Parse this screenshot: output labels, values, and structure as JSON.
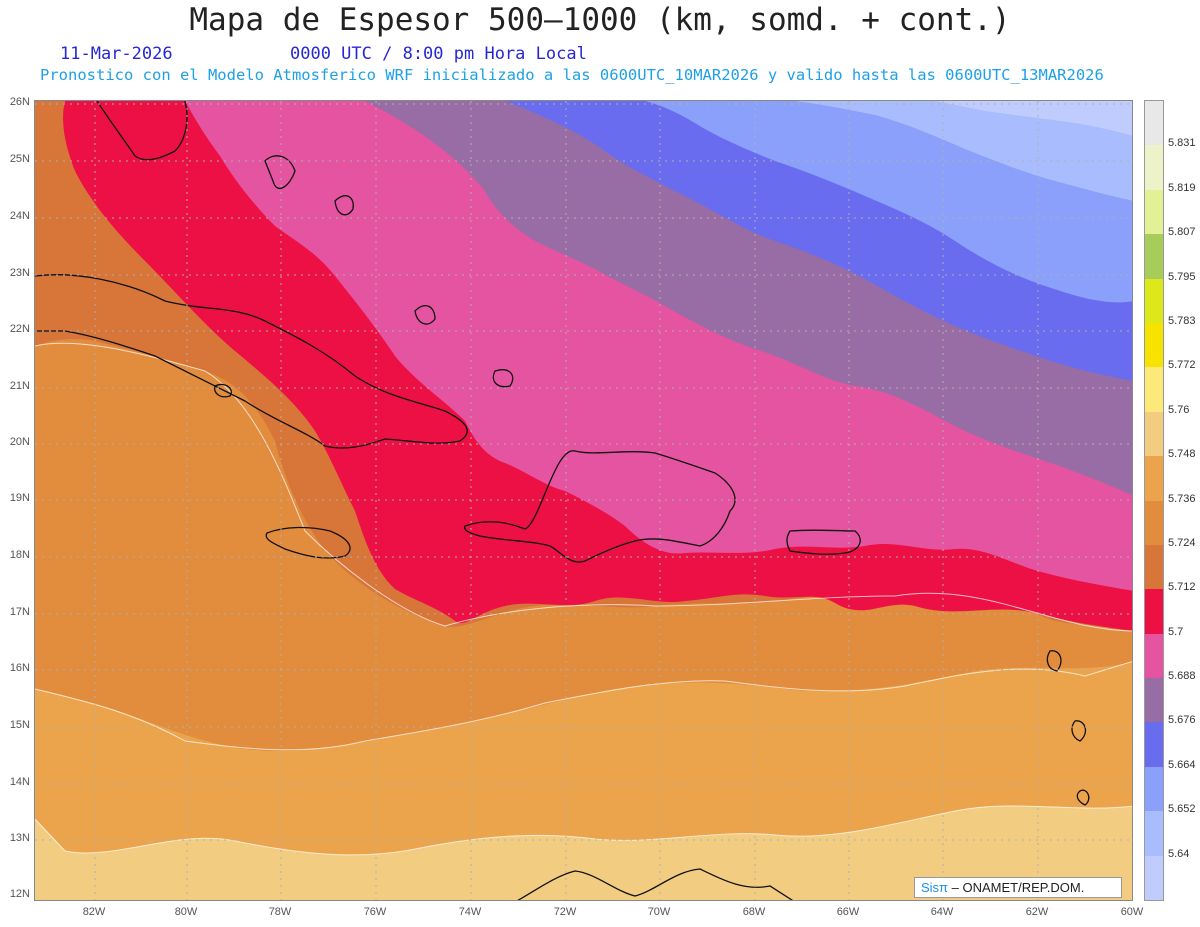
{
  "header": {
    "title": "Mapa de Espesor 500–1000 (km, somd. + cont.)",
    "date": "11-Mar-2026",
    "time": "0000 UTC / 8:00 pm Hora Local",
    "subtitle": "Pronostico con el Modelo Atmosferico WRF inicializado a las 0600UTC_10MAR2026 y valido hasta las  0600UTC_13MAR2026"
  },
  "map": {
    "lat_labels": [
      "26N",
      "25N",
      "24N",
      "23N",
      "22N",
      "21N",
      "20N",
      "19N",
      "18N",
      "17N",
      "16N",
      "15N",
      "14N",
      "13N",
      "12N"
    ],
    "lon_labels": [
      "82W",
      "80W",
      "78W",
      "76W",
      "74W",
      "72W",
      "70W",
      "68W",
      "66W",
      "64W",
      "62W",
      "60W"
    ],
    "lat_range": [
      12,
      26
    ],
    "lon_range": [
      -83.2,
      -60
    ]
  },
  "colorbar": {
    "labels": [
      "5.831",
      "5.819",
      "5.807",
      "5.795",
      "5.783",
      "5.772",
      "5.76",
      "5.748",
      "5.736",
      "5.724",
      "5.712",
      "5.7",
      "5.688",
      "5.676",
      "5.664",
      "5.652",
      "5.64"
    ],
    "colors": [
      "#e8e8e8",
      "#eef2c8",
      "#e2f096",
      "#a8cc5a",
      "#dce81a",
      "#f6e400",
      "#fde87a",
      "#f2cc80",
      "#eca44c",
      "#e28c3e",
      "#d8763a",
      "#ec1044",
      "#e454a0",
      "#986ca4",
      "#6a6cf0",
      "#8aa0fa",
      "#a8bcfe",
      "#c0ccfe"
    ]
  },
  "levels": {
    "colors": [
      "#f2cc80",
      "#eca44c",
      "#e28c3e",
      "#d8763a",
      "#ec1044",
      "#e454a0",
      "#986ca4",
      "#6a6cf0",
      "#8aa0fa",
      "#a8bcfe",
      "#c0ccfe"
    ]
  },
  "credit": {
    "brand": "Sisπ",
    "text": "– ONAMET/REP.DOM."
  }
}
